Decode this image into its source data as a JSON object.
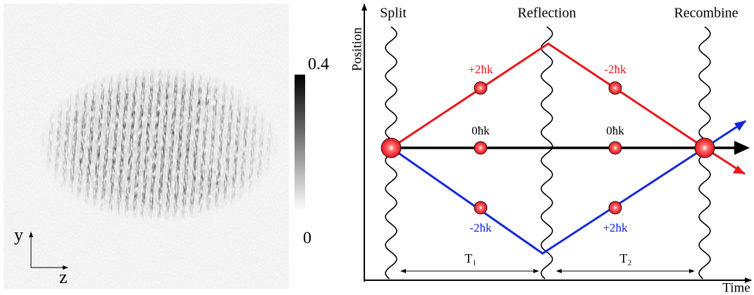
{
  "image_panel": {
    "colorbar_max": "0.4",
    "colorbar_min": "0",
    "axis_y": "y",
    "axis_z": "z"
  },
  "diagram": {
    "events": [
      "Split",
      "Reflection",
      "Recombine"
    ],
    "position_axis": "Position",
    "time_axis": "Time",
    "state_labels": {
      "upper_first": "+2ħk",
      "upper_second": "-2ħk",
      "middle_first": "0ħk",
      "middle_second": "0ħk",
      "lower_first": "-2ħk",
      "lower_second": "+2ħk"
    },
    "intervals": [
      "T₁",
      "T₂"
    ]
  }
}
